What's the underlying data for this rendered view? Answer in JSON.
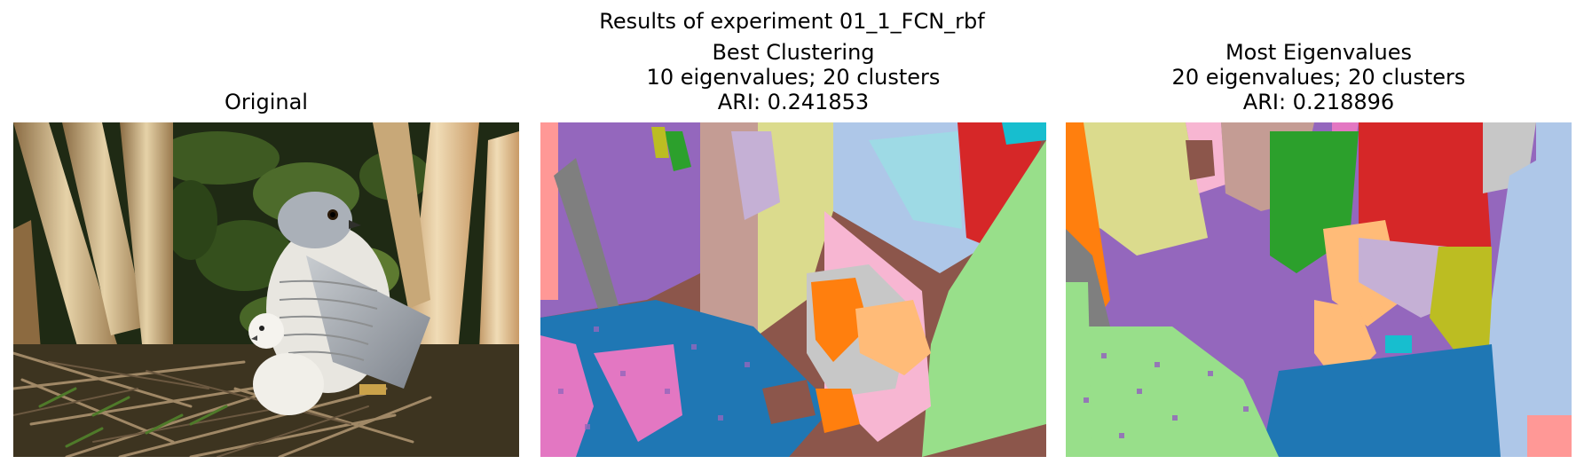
{
  "figure": {
    "suptitle": "Results of experiment 01_1_FCN_rbf"
  },
  "panels": [
    {
      "title_lines": [
        "Original"
      ],
      "image": "photo of a hawk perched over a fluffy white chick in a twig nest, framed by pale eucalyptus trunks and dark foliage"
    },
    {
      "title_lines": [
        "Best Clustering",
        "10 eigenvalues; 20 clusters",
        "ARI: 0.241853"
      ],
      "image": "segmentation map with 20 color-coded clusters"
    },
    {
      "title_lines": [
        "Most Eigenvalues",
        "20 eigenvalues; 20 clusters",
        "ARI: 0.218896"
      ],
      "image": "segmentation map with 20 color-coded clusters"
    }
  ],
  "colors": {
    "blue": "#1f77b4",
    "orange": "#ff7f0e",
    "green": "#2ca02c",
    "red": "#d62728",
    "purple": "#9467bd",
    "brown": "#8c564b",
    "pink": "#e377c2",
    "gray": "#7f7f7f",
    "olive": "#bcbd22",
    "cyan": "#17becf",
    "light_blue": "#aec7e8",
    "light_orange": "#ffbb78",
    "light_green": "#98df8a",
    "light_red": "#ff9896",
    "light_purple": "#c5b0d5",
    "light_brown": "#c49c94",
    "light_pink": "#f7b6d2",
    "light_gray": "#c7c7c7",
    "light_olive": "#dbdb8d",
    "light_cyan": "#9edae5"
  }
}
